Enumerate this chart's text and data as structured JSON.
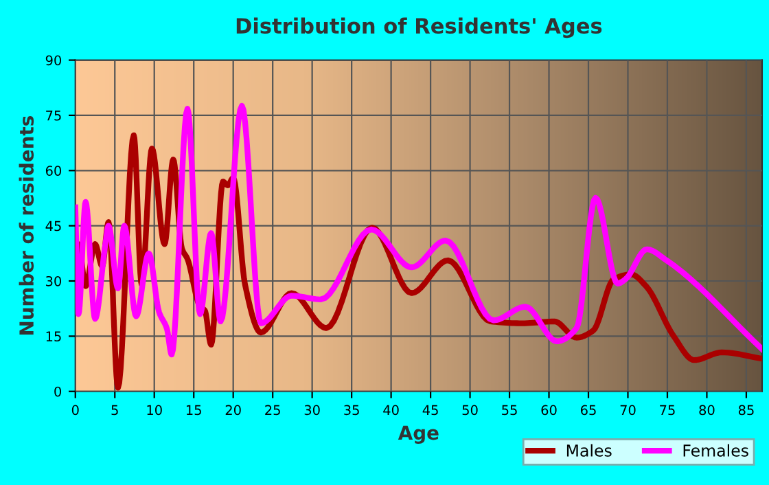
{
  "chart_data": {
    "type": "line",
    "title": "Distribution of Residents' Ages",
    "xlabel": "Age",
    "ylabel": "Number of residents",
    "xlim": [
      0,
      87
    ],
    "xticks": [
      0,
      5,
      10,
      15,
      20,
      25,
      30,
      35,
      40,
      45,
      50,
      55,
      60,
      65,
      70,
      75,
      80,
      85
    ],
    "ylim": [
      0,
      90
    ],
    "yticks": [
      0,
      15,
      30,
      45,
      60,
      75,
      90
    ],
    "grid": true,
    "legend": "bottom right",
    "series": [
      {
        "name": "Males",
        "color": "#aa0000",
        "x": [
          0,
          0.3,
          0.4,
          1.3,
          2.5,
          3.4,
          4.2,
          5.4,
          7.4,
          8.4,
          9.7,
          11.3,
          12.4,
          13.5,
          14.2,
          15.8,
          16.4,
          17.2,
          18.7,
          19.3,
          20,
          21.5,
          23.5,
          27.4,
          31.8,
          37.6,
          42.6,
          47.2,
          52.6,
          56.6,
          60.7,
          63.5,
          65.6,
          68.2,
          70.4,
          72.3,
          75.8,
          78.4,
          81.9,
          87
        ],
        "values": [
          39,
          29,
          40,
          28.6,
          40,
          34,
          46,
          1,
          69.6,
          29,
          66,
          40,
          63,
          38.8,
          36,
          23,
          22,
          12.7,
          57,
          56,
          58,
          29,
          16,
          26.7,
          17.2,
          44.5,
          26.7,
          35.6,
          19,
          18.5,
          19,
          14.6,
          16.5,
          30.5,
          31.8,
          28.6,
          15,
          8.5,
          10.6,
          8.9
        ]
      },
      {
        "name": "Females",
        "color": "#ff00ff",
        "x": [
          0,
          0.4,
          1.3,
          2.5,
          3.8,
          4.2,
          5.4,
          6.2,
          7.7,
          9.3,
          10.6,
          11.6,
          12.2,
          14.2,
          15.8,
          17.2,
          18.4,
          21.1,
          23.5,
          27.4,
          31.1,
          37.5,
          42.6,
          46.9,
          53,
          57,
          61,
          63.5,
          65.9,
          68.7,
          69.7,
          72.4,
          74.9,
          87
        ],
        "values": [
          50,
          21,
          51.5,
          19.7,
          40,
          45,
          28,
          45,
          20.4,
          37.5,
          21.6,
          17,
          10,
          76.8,
          21,
          43,
          19,
          77.6,
          18.5,
          26,
          25,
          44,
          33.7,
          41,
          19.3,
          23,
          13.6,
          17.2,
          52.6,
          29.3,
          30.5,
          38.6,
          35.6,
          11.5
        ]
      }
    ]
  }
}
